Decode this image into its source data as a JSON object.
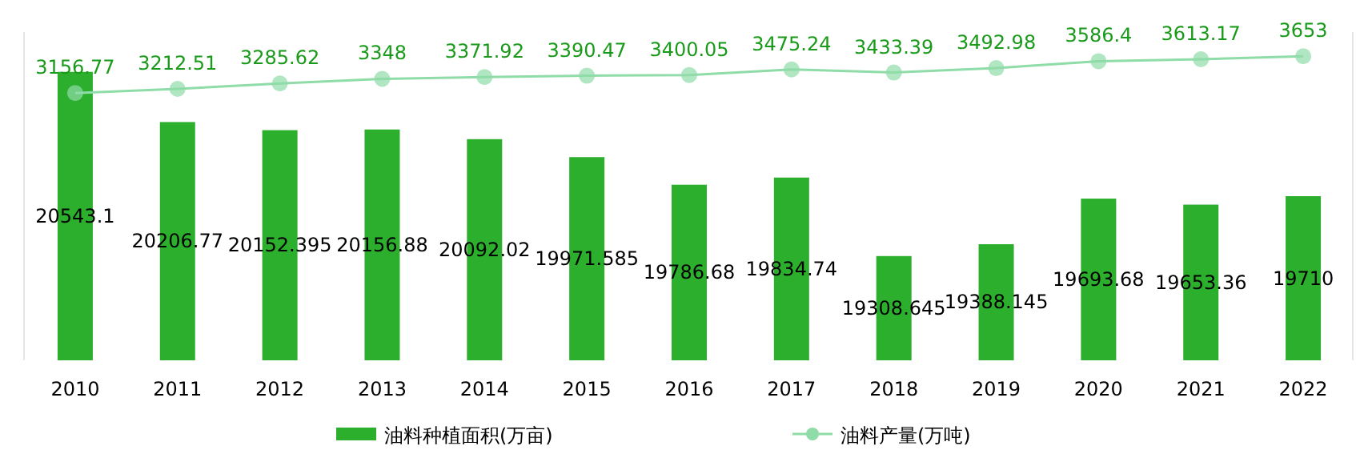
{
  "chart_data": {
    "type": "bar",
    "categories": [
      "2010",
      "2011",
      "2012",
      "2013",
      "2014",
      "2015",
      "2016",
      "2017",
      "2018",
      "2019",
      "2020",
      "2021",
      "2022"
    ],
    "series": [
      {
        "name": "油料种植面积(万亩)",
        "color": "#2caf2c",
        "values": [
          20543.1,
          20206.77,
          20152.395,
          20156.88,
          20092.02,
          19971.585,
          19786.68,
          19834.74,
          19308.645,
          19388.145,
          19693.68,
          19653.36,
          19710
        ]
      },
      {
        "name": "油料产量(万吨)",
        "type": "line",
        "axis": "y2",
        "color": "#8fdca8",
        "marker": "circle",
        "values": [
          3156.77,
          3212.51,
          3285.62,
          3348,
          3371.92,
          3390.47,
          3400.05,
          3475.24,
          3433.39,
          3492.98,
          3586.4,
          3613.17,
          3653
        ]
      }
    ],
    "ylim": [
      18610,
      20810
    ],
    "y2lim": [
      -450,
      3980
    ],
    "tick_labels": "x",
    "data_labels": true,
    "grid": false,
    "legend": "bottom"
  }
}
